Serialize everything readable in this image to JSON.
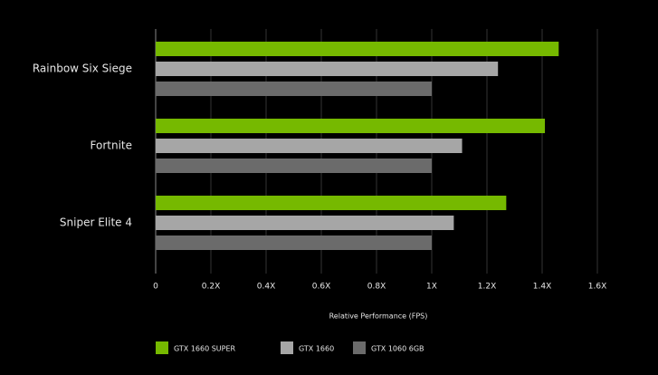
{
  "chart_data": {
    "type": "bar",
    "orientation": "horizontal",
    "x_label": "Relative Performance (FPS)",
    "categories": [
      "Rainbow Six Siege",
      "Fortnite",
      "Sniper Elite 4"
    ],
    "series": [
      {
        "name": "GTX 1660 SUPER",
        "color": "#76b900",
        "values": [
          1.46,
          1.41,
          1.27
        ]
      },
      {
        "name": "GTX 1660",
        "color": "#a6a6a6",
        "values": [
          1.24,
          1.11,
          1.08
        ]
      },
      {
        "name": "GTX 1060 6GB",
        "color": "#6b6b6b",
        "values": [
          1.0,
          1.0,
          1.0
        ]
      }
    ],
    "xlim": [
      0,
      1.6
    ],
    "xticks": [
      0,
      {
        "value": 0.2,
        "label": "0.2X"
      },
      {
        "value": 0.4,
        "label": "0.4X"
      },
      {
        "value": 0.6,
        "label": "0.6X"
      },
      {
        "value": 0.8,
        "label": "0.8X"
      },
      {
        "value": 1,
        "label": "1X"
      },
      {
        "value": 1.2,
        "label": "1.2X"
      },
      {
        "value": 1.4,
        "label": "1.4X"
      },
      {
        "value": 1.6,
        "label": "1.6X"
      }
    ],
    "grid": true
  }
}
